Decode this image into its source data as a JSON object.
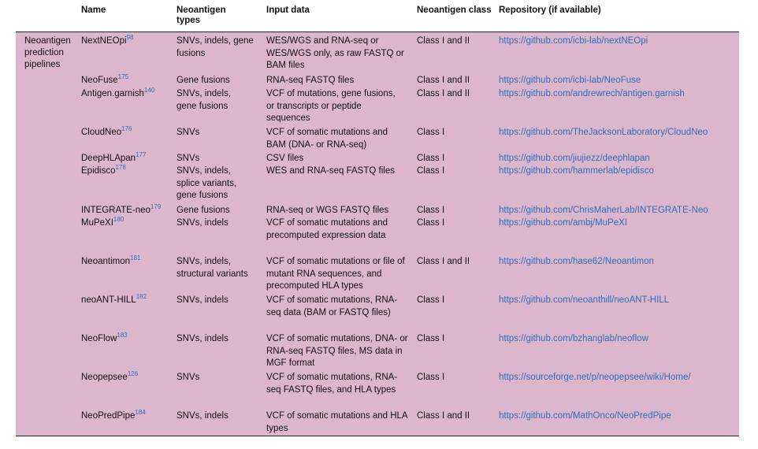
{
  "headers": {
    "name": "Name",
    "types": "Neoantigen types",
    "input": "Input data",
    "cls": "Neoantigen class",
    "repo": "Repository (if available)"
  },
  "group_label": "Neoantigen prediction pipelines",
  "rows": [
    {
      "name": "NextNEOpi",
      "ref": "98",
      "types": "SNVs, indels, gene fusions",
      "input": "WES/WGS and RNA-seq or WES/WGS only, as raw FASTQ or BAM files",
      "cls": "Class I and II",
      "repo": "https://github.com/icbi-lab/nextNEOpi"
    },
    {
      "name": "NeoFuse",
      "ref": "175",
      "types": "Gene fusions",
      "input": "RNA-seq FASTQ files",
      "cls": "Class I and II",
      "repo": "https://github.com/icbi-lab/NeoFuse"
    },
    {
      "name": "Antigen.garnish",
      "ref": "140",
      "types": "SNVs, indels, gene fusions",
      "input": "VCF of mutations, gene fusions, or transcripts or peptide sequences",
      "cls": "Class I and II",
      "repo": "https://github.com/andrewrech/antigen.garnish"
    },
    {
      "name": "CloudNeo",
      "ref": "176",
      "types": "SNVs",
      "input": "VCF of somatic mutations and BAM (DNA- or RNA-seq)",
      "cls": "Class I",
      "repo": "https://github.com/TheJacksonLaboratory/CloudNeo"
    },
    {
      "name": "DeepHLApan",
      "ref": "177",
      "types": "SNVs",
      "input": "CSV files",
      "cls": "Class I",
      "repo": "https://github.com/jiujiezz/deephlapan"
    },
    {
      "name": "Epidisco",
      "ref": "178",
      "types": "SNVs, indels, splice variants, gene fusions",
      "input": "WES and RNA-seq FASTQ files",
      "cls": "Class I",
      "repo": "https://github.com/hammerlab/epidisco"
    },
    {
      "name": "INTEGRATE-neo",
      "ref": "179",
      "types": "Gene fusions",
      "input": "RNA-seq or WGS FASTQ files",
      "cls": "Class I",
      "repo": "https://github.com/ChrisMaherLab/INTEGRATE-Neo"
    },
    {
      "name": "MuPeXI",
      "ref": "180",
      "types": "SNVs, indels",
      "input": "VCF of somatic mutations and precomputed expression data",
      "cls": "Class I",
      "repo": "https://github.com/ambj/MuPeXI"
    },
    {
      "name": "Neoantimon",
      "ref": "181",
      "types": "SNVs, indels, structural variants",
      "input": "VCF of somatic mutations or file of mutant RNA sequences, and precomputed HLA types",
      "cls": "Class I and II",
      "repo": "https://github.com/hase62/Neoantimon"
    },
    {
      "name": "neoANT-HILL",
      "ref": "182",
      "types": "SNVs, indels",
      "input": "VCF of somatic mutations, RNA-seq data (BAM or FASTQ files)",
      "cls": "Class I",
      "repo": "https://github.com/neoanthill/neoANT-HILL"
    },
    {
      "name": "NeoFlow",
      "ref": "183",
      "types": "SNVs, indels",
      "input": "VCF of somatic mutations, DNA- or RNA-seq FASTQ files, MS data in MGF format",
      "cls": "Class I",
      "repo": "https://github.com/bzhanglab/neoflow"
    },
    {
      "name": "Neopepsee",
      "ref": "126",
      "types": "SNVs",
      "input": "VCF of somatic mutations, RNA-seq FASTQ files, and HLA types",
      "cls": "Class I",
      "repo": "https://sourceforge.net/p/neopepsee/wiki/Home/"
    },
    {
      "name": "NeoPredPipe",
      "ref": "184",
      "types": "SNVs, indels",
      "input": "VCF of somatic mutations and HLA types",
      "cls": "Class I and II",
      "repo": "https://github.com/MathOnco/NeoPredPipe"
    }
  ]
}
